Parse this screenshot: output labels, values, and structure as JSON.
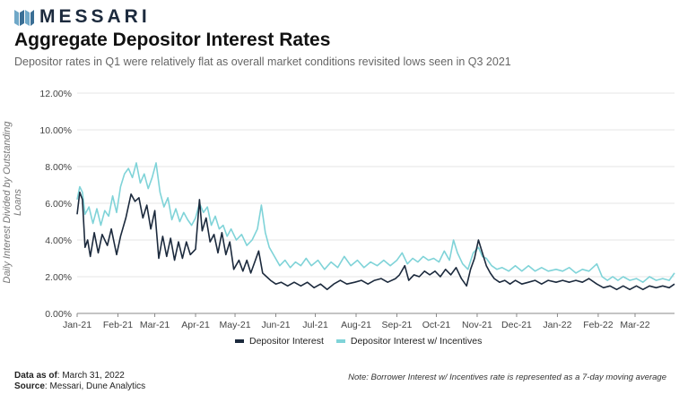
{
  "brand": {
    "name": "MESSARI"
  },
  "title": "Aggregate Depositor Interest Rates",
  "subtitle": "Depositor rates in Q1 were relatively flat as overall market conditions revisited lows seen in Q3 2021",
  "footer": {
    "data_as_of_label": "Data as of",
    "data_as_of_value": ": March 31, 2022",
    "source_label": "Source",
    "source_value": ": Messari, Dune Analytics",
    "note": "Note: Borrower Interest w/ Incentives rate is represented as a 7-day moving average"
  },
  "colors": {
    "depositor": "#1c2a3d",
    "incentives": "#7fd3d8",
    "grid": "#e6e6e6",
    "brand": "#6fa8c8"
  },
  "chart_data": {
    "type": "line",
    "ylabel": "Daily Interest Divided by Outstanding Loans",
    "xlabel": "",
    "ylim": [
      0,
      12
    ],
    "yticks": [
      "0.00%",
      "2.00%",
      "4.00%",
      "6.00%",
      "8.00%",
      "10.00%",
      "12.00%"
    ],
    "xlim": [
      "2021-01-01",
      "2022-03-31"
    ],
    "xticks": [
      "Jan-21",
      "Feb-21",
      "Mar-21",
      "Apr-21",
      "May-21",
      "Jun-21",
      "Jul-21",
      "Aug-21",
      "Sep-21",
      "Oct-21",
      "Nov-21",
      "Dec-21",
      "Jan-22",
      "Feb-22",
      "Mar-22"
    ],
    "legend": "bottom",
    "grid": true,
    "series": [
      {
        "name": "Depositor Interest",
        "points": [
          [
            "2021-01-01",
            5.4
          ],
          [
            "2021-01-03",
            6.6
          ],
          [
            "2021-01-05",
            6.2
          ],
          [
            "2021-01-07",
            3.6
          ],
          [
            "2021-01-09",
            4.0
          ],
          [
            "2021-01-11",
            3.1
          ],
          [
            "2021-01-14",
            4.4
          ],
          [
            "2021-01-17",
            3.3
          ],
          [
            "2021-01-20",
            4.3
          ],
          [
            "2021-01-24",
            3.7
          ],
          [
            "2021-01-27",
            4.6
          ],
          [
            "2021-01-31",
            3.2
          ],
          [
            "2021-02-03",
            4.2
          ],
          [
            "2021-02-07",
            5.2
          ],
          [
            "2021-02-11",
            6.5
          ],
          [
            "2021-02-14",
            6.1
          ],
          [
            "2021-02-17",
            6.3
          ],
          [
            "2021-02-20",
            5.2
          ],
          [
            "2021-02-23",
            5.9
          ],
          [
            "2021-02-26",
            4.6
          ],
          [
            "2021-03-01",
            5.6
          ],
          [
            "2021-03-04",
            3.0
          ],
          [
            "2021-03-07",
            4.2
          ],
          [
            "2021-03-10",
            3.1
          ],
          [
            "2021-03-13",
            4.1
          ],
          [
            "2021-03-16",
            2.9
          ],
          [
            "2021-03-19",
            3.9
          ],
          [
            "2021-03-22",
            3.0
          ],
          [
            "2021-03-25",
            3.9
          ],
          [
            "2021-03-28",
            3.2
          ],
          [
            "2021-04-01",
            3.5
          ],
          [
            "2021-04-04",
            6.2
          ],
          [
            "2021-04-06",
            4.5
          ],
          [
            "2021-04-09",
            5.2
          ],
          [
            "2021-04-12",
            3.9
          ],
          [
            "2021-04-15",
            4.3
          ],
          [
            "2021-04-18",
            3.3
          ],
          [
            "2021-04-21",
            4.4
          ],
          [
            "2021-04-24",
            3.2
          ],
          [
            "2021-04-27",
            3.9
          ],
          [
            "2021-04-30",
            2.4
          ],
          [
            "2021-05-04",
            2.9
          ],
          [
            "2021-05-07",
            2.3
          ],
          [
            "2021-05-10",
            2.9
          ],
          [
            "2021-05-13",
            2.2
          ],
          [
            "2021-05-16",
            2.8
          ],
          [
            "2021-05-19",
            3.4
          ],
          [
            "2021-05-22",
            2.2
          ],
          [
            "2021-05-25",
            2.0
          ],
          [
            "2021-05-28",
            1.8
          ],
          [
            "2021-06-01",
            1.6
          ],
          [
            "2021-06-05",
            1.7
          ],
          [
            "2021-06-10",
            1.5
          ],
          [
            "2021-06-15",
            1.7
          ],
          [
            "2021-06-20",
            1.5
          ],
          [
            "2021-06-25",
            1.7
          ],
          [
            "2021-06-30",
            1.4
          ],
          [
            "2021-07-05",
            1.6
          ],
          [
            "2021-07-10",
            1.3
          ],
          [
            "2021-07-15",
            1.6
          ],
          [
            "2021-07-20",
            1.8
          ],
          [
            "2021-07-25",
            1.6
          ],
          [
            "2021-07-31",
            1.7
          ],
          [
            "2021-08-05",
            1.8
          ],
          [
            "2021-08-10",
            1.6
          ],
          [
            "2021-08-15",
            1.8
          ],
          [
            "2021-08-20",
            1.9
          ],
          [
            "2021-08-25",
            1.7
          ],
          [
            "2021-08-31",
            1.9
          ],
          [
            "2021-09-03",
            2.1
          ],
          [
            "2021-09-07",
            2.6
          ],
          [
            "2021-09-10",
            1.8
          ],
          [
            "2021-09-14",
            2.1
          ],
          [
            "2021-09-18",
            2.0
          ],
          [
            "2021-09-22",
            2.3
          ],
          [
            "2021-09-26",
            2.1
          ],
          [
            "2021-09-30",
            2.3
          ],
          [
            "2021-10-04",
            2.0
          ],
          [
            "2021-10-08",
            2.4
          ],
          [
            "2021-10-12",
            2.1
          ],
          [
            "2021-10-16",
            2.5
          ],
          [
            "2021-10-20",
            1.9
          ],
          [
            "2021-10-24",
            1.5
          ],
          [
            "2021-10-27",
            2.4
          ],
          [
            "2021-10-30",
            3.0
          ],
          [
            "2021-11-02",
            4.0
          ],
          [
            "2021-11-05",
            3.3
          ],
          [
            "2021-11-08",
            2.6
          ],
          [
            "2021-11-11",
            2.2
          ],
          [
            "2021-11-14",
            1.9
          ],
          [
            "2021-11-18",
            1.7
          ],
          [
            "2021-11-22",
            1.8
          ],
          [
            "2021-11-26",
            1.6
          ],
          [
            "2021-11-30",
            1.8
          ],
          [
            "2021-12-05",
            1.6
          ],
          [
            "2021-12-10",
            1.7
          ],
          [
            "2021-12-15",
            1.8
          ],
          [
            "2021-12-20",
            1.6
          ],
          [
            "2021-12-25",
            1.8
          ],
          [
            "2021-12-31",
            1.7
          ],
          [
            "2022-01-05",
            1.8
          ],
          [
            "2022-01-10",
            1.7
          ],
          [
            "2022-01-15",
            1.8
          ],
          [
            "2022-01-20",
            1.7
          ],
          [
            "2022-01-25",
            1.9
          ],
          [
            "2022-01-31",
            1.6
          ],
          [
            "2022-02-05",
            1.4
          ],
          [
            "2022-02-10",
            1.5
          ],
          [
            "2022-02-15",
            1.3
          ],
          [
            "2022-02-20",
            1.5
          ],
          [
            "2022-02-25",
            1.3
          ],
          [
            "2022-03-02",
            1.5
          ],
          [
            "2022-03-07",
            1.3
          ],
          [
            "2022-03-12",
            1.5
          ],
          [
            "2022-03-17",
            1.4
          ],
          [
            "2022-03-22",
            1.5
          ],
          [
            "2022-03-27",
            1.4
          ],
          [
            "2022-03-31",
            1.6
          ]
        ]
      },
      {
        "name": "Depositor Interest w/ Incentives",
        "points": [
          [
            "2021-01-01",
            6.2
          ],
          [
            "2021-01-03",
            6.9
          ],
          [
            "2021-01-05",
            6.6
          ],
          [
            "2021-01-07",
            5.4
          ],
          [
            "2021-01-10",
            5.8
          ],
          [
            "2021-01-13",
            4.9
          ],
          [
            "2021-01-16",
            5.7
          ],
          [
            "2021-01-19",
            4.8
          ],
          [
            "2021-01-22",
            5.6
          ],
          [
            "2021-01-25",
            5.3
          ],
          [
            "2021-01-28",
            6.4
          ],
          [
            "2021-01-31",
            5.5
          ],
          [
            "2021-02-03",
            6.9
          ],
          [
            "2021-02-06",
            7.6
          ],
          [
            "2021-02-09",
            7.9
          ],
          [
            "2021-02-12",
            7.4
          ],
          [
            "2021-02-15",
            8.2
          ],
          [
            "2021-02-18",
            7.1
          ],
          [
            "2021-02-21",
            7.6
          ],
          [
            "2021-02-24",
            6.8
          ],
          [
            "2021-02-27",
            7.4
          ],
          [
            "2021-03-02",
            8.2
          ],
          [
            "2021-03-05",
            6.6
          ],
          [
            "2021-03-08",
            5.8
          ],
          [
            "2021-03-11",
            6.3
          ],
          [
            "2021-03-14",
            5.1
          ],
          [
            "2021-03-17",
            5.7
          ],
          [
            "2021-03-20",
            5.0
          ],
          [
            "2021-03-23",
            5.5
          ],
          [
            "2021-03-26",
            5.1
          ],
          [
            "2021-03-29",
            4.8
          ],
          [
            "2021-04-01",
            5.2
          ],
          [
            "2021-04-04",
            6.0
          ],
          [
            "2021-04-07",
            5.5
          ],
          [
            "2021-04-10",
            5.8
          ],
          [
            "2021-04-13",
            4.8
          ],
          [
            "2021-04-16",
            5.3
          ],
          [
            "2021-04-19",
            4.6
          ],
          [
            "2021-04-22",
            4.8
          ],
          [
            "2021-04-25",
            4.2
          ],
          [
            "2021-04-28",
            4.6
          ],
          [
            "2021-05-02",
            4.0
          ],
          [
            "2021-05-06",
            4.3
          ],
          [
            "2021-05-10",
            3.7
          ],
          [
            "2021-05-14",
            4.0
          ],
          [
            "2021-05-18",
            4.6
          ],
          [
            "2021-05-21",
            5.9
          ],
          [
            "2021-05-24",
            4.4
          ],
          [
            "2021-05-27",
            3.6
          ],
          [
            "2021-05-31",
            3.1
          ],
          [
            "2021-06-04",
            2.6
          ],
          [
            "2021-06-08",
            2.9
          ],
          [
            "2021-06-12",
            2.5
          ],
          [
            "2021-06-16",
            2.8
          ],
          [
            "2021-06-20",
            2.6
          ],
          [
            "2021-06-24",
            3.0
          ],
          [
            "2021-06-28",
            2.6
          ],
          [
            "2021-07-03",
            2.9
          ],
          [
            "2021-07-08",
            2.4
          ],
          [
            "2021-07-13",
            2.8
          ],
          [
            "2021-07-18",
            2.5
          ],
          [
            "2021-07-23",
            3.1
          ],
          [
            "2021-07-28",
            2.6
          ],
          [
            "2021-08-02",
            2.9
          ],
          [
            "2021-08-07",
            2.5
          ],
          [
            "2021-08-12",
            2.8
          ],
          [
            "2021-08-17",
            2.6
          ],
          [
            "2021-08-22",
            2.9
          ],
          [
            "2021-08-27",
            2.6
          ],
          [
            "2021-09-01",
            2.9
          ],
          [
            "2021-09-05",
            3.3
          ],
          [
            "2021-09-09",
            2.7
          ],
          [
            "2021-09-13",
            3.0
          ],
          [
            "2021-09-17",
            2.8
          ],
          [
            "2021-09-21",
            3.1
          ],
          [
            "2021-09-25",
            2.9
          ],
          [
            "2021-09-29",
            3.0
          ],
          [
            "2021-10-03",
            2.8
          ],
          [
            "2021-10-07",
            3.4
          ],
          [
            "2021-10-11",
            2.9
          ],
          [
            "2021-10-14",
            4.0
          ],
          [
            "2021-10-17",
            3.3
          ],
          [
            "2021-10-21",
            2.7
          ],
          [
            "2021-10-25",
            2.4
          ],
          [
            "2021-10-29",
            3.3
          ],
          [
            "2021-11-02",
            3.6
          ],
          [
            "2021-11-05",
            3.1
          ],
          [
            "2021-11-08",
            3.0
          ],
          [
            "2021-11-12",
            2.6
          ],
          [
            "2021-11-16",
            2.4
          ],
          [
            "2021-11-20",
            2.5
          ],
          [
            "2021-11-25",
            2.3
          ],
          [
            "2021-11-30",
            2.6
          ],
          [
            "2021-12-05",
            2.3
          ],
          [
            "2021-12-10",
            2.6
          ],
          [
            "2021-12-15",
            2.3
          ],
          [
            "2021-12-20",
            2.5
          ],
          [
            "2021-12-25",
            2.3
          ],
          [
            "2021-12-31",
            2.4
          ],
          [
            "2022-01-05",
            2.3
          ],
          [
            "2022-01-10",
            2.5
          ],
          [
            "2022-01-15",
            2.2
          ],
          [
            "2022-01-20",
            2.4
          ],
          [
            "2022-01-25",
            2.3
          ],
          [
            "2022-01-31",
            2.7
          ],
          [
            "2022-02-04",
            2.0
          ],
          [
            "2022-02-08",
            1.8
          ],
          [
            "2022-02-12",
            2.0
          ],
          [
            "2022-02-16",
            1.8
          ],
          [
            "2022-02-20",
            2.0
          ],
          [
            "2022-02-25",
            1.8
          ],
          [
            "2022-03-02",
            1.9
          ],
          [
            "2022-03-07",
            1.7
          ],
          [
            "2022-03-12",
            2.0
          ],
          [
            "2022-03-17",
            1.8
          ],
          [
            "2022-03-22",
            1.9
          ],
          [
            "2022-03-27",
            1.8
          ],
          [
            "2022-03-31",
            2.2
          ]
        ]
      }
    ]
  }
}
